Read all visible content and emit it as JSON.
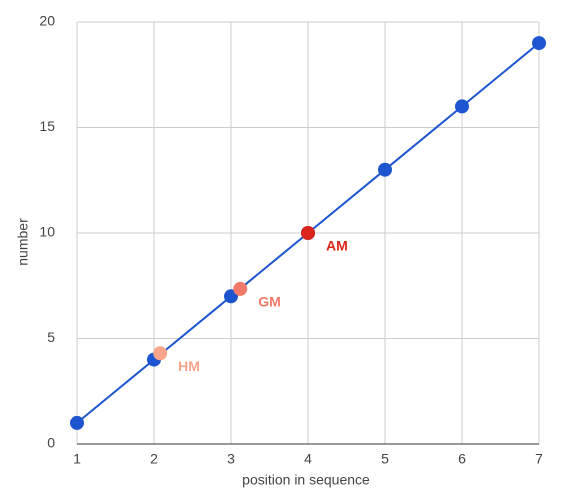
{
  "chart_data": {
    "type": "line",
    "x_label": "position in sequence",
    "y_label": "number",
    "x": [
      1,
      2,
      3,
      4,
      5,
      6,
      7
    ],
    "values": [
      1,
      4,
      7,
      10,
      13,
      16,
      19
    ],
    "color": "#1c55cf",
    "xlim": [
      1,
      7
    ],
    "ylim": [
      0,
      20
    ],
    "xticks": [
      1,
      2,
      3,
      4,
      5,
      6,
      7
    ],
    "yticks": [
      0,
      5,
      10,
      15,
      20
    ],
    "grid": true,
    "highlights": [
      {
        "label": "HM",
        "x": 2.08,
        "y": 4.3,
        "color": "#fba48c"
      },
      {
        "label": "GM",
        "x": 3.12,
        "y": 7.35,
        "color": "#f47867"
      },
      {
        "label": "AM",
        "x": 4,
        "y": 10,
        "color": "#dc251a"
      }
    ]
  }
}
